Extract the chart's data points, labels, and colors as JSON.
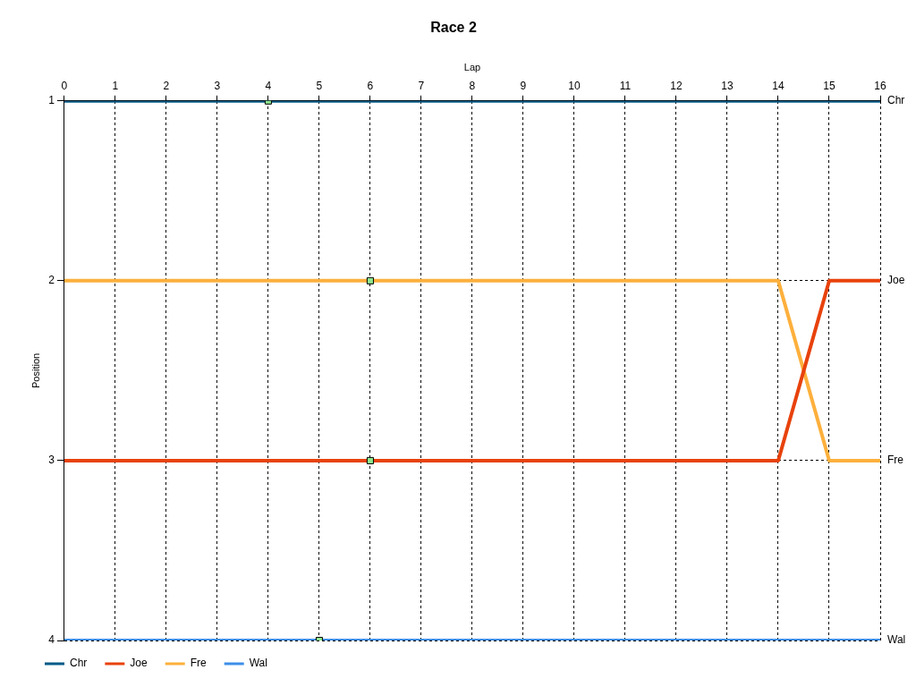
{
  "chart_data": {
    "type": "line",
    "title": "Race 2",
    "xlabel": "Lap",
    "ylabel": "Position",
    "x": [
      0,
      1,
      2,
      3,
      4,
      5,
      6,
      7,
      8,
      9,
      10,
      11,
      12,
      13,
      14,
      15,
      16
    ],
    "xlim": [
      0,
      16
    ],
    "xticks": [
      0,
      1,
      2,
      3,
      4,
      5,
      6,
      7,
      8,
      9,
      10,
      11,
      12,
      13,
      14,
      15,
      16
    ],
    "ylim": [
      4,
      1
    ],
    "yticks": [
      1,
      2,
      3,
      4
    ],
    "grid": true,
    "legend": "bottom left",
    "marker": "none",
    "line_style": "solid",
    "series": [
      {
        "name": "Chr",
        "color": "#005a87",
        "values": [
          1,
          1,
          1,
          1,
          1,
          1,
          1,
          1,
          1,
          1,
          1,
          1,
          1,
          1,
          1,
          1,
          1
        ]
      },
      {
        "name": "Joe",
        "color": "#e8420c",
        "values": [
          3,
          3,
          3,
          3,
          3,
          3,
          3,
          3,
          3,
          3,
          3,
          3,
          3,
          3,
          3,
          2,
          2
        ]
      },
      {
        "name": "Fre",
        "color": "#fdb03c",
        "values": [
          2,
          2,
          2,
          2,
          2,
          2,
          2,
          2,
          2,
          2,
          2,
          2,
          2,
          2,
          2,
          3,
          3
        ]
      },
      {
        "name": "Wal",
        "color": "#3d8ee8",
        "values": [
          4,
          4,
          4,
          4,
          4,
          4,
          4,
          4,
          4,
          4,
          4,
          4,
          4,
          4,
          4,
          4,
          4
        ]
      },
      {
        "type": "scatter",
        "color": "#90e890",
        "marker": "square",
        "x": [
          4,
          6,
          6,
          5
        ],
        "values": [
          1,
          2,
          3,
          4
        ]
      }
    ]
  }
}
